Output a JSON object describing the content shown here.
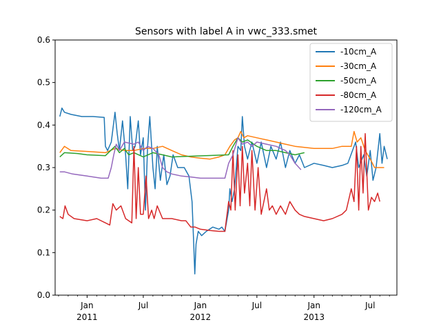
{
  "chart_data": {
    "type": "line",
    "title": "Sensors with label A in vwc_333.smet",
    "xlabel": "",
    "ylabel": "",
    "xlim": [
      "2010-09-20",
      "2013-09-25"
    ],
    "ylim": [
      0,
      0.6
    ],
    "x_ticks_major": [
      {
        "date": "2011-01-01",
        "label": "Jan",
        "year": "2011"
      },
      {
        "date": "2011-07-01",
        "label": "Jul",
        "year": ""
      },
      {
        "date": "2012-01-01",
        "label": "Jan",
        "year": "2012"
      },
      {
        "date": "2012-07-01",
        "label": "Jul",
        "year": ""
      },
      {
        "date": "2013-01-01",
        "label": "Jan",
        "year": "2013"
      },
      {
        "date": "2013-07-01",
        "label": "Jul",
        "year": ""
      }
    ],
    "y_ticks": [
      "0.0",
      "0.1",
      "0.2",
      "0.3",
      "0.4",
      "0.5",
      "0.6"
    ],
    "grid": false,
    "legend_position": "top-right",
    "series": [
      {
        "name": "-10cm_A",
        "color": "#1f77b4",
        "points": [
          [
            "2010-10-05",
            0.42
          ],
          [
            "2010-10-12",
            0.44
          ],
          [
            "2010-10-20",
            0.43
          ],
          [
            "2010-11-10",
            0.425
          ],
          [
            "2010-12-15",
            0.42
          ],
          [
            "2011-01-20",
            0.42
          ],
          [
            "2011-02-25",
            0.418
          ],
          [
            "2011-03-01",
            0.35
          ],
          [
            "2011-03-08",
            0.34
          ],
          [
            "2011-03-20",
            0.36
          ],
          [
            "2011-04-01",
            0.43
          ],
          [
            "2011-04-08",
            0.38
          ],
          [
            "2011-04-15",
            0.34
          ],
          [
            "2011-04-25",
            0.41
          ],
          [
            "2011-05-05",
            0.33
          ],
          [
            "2011-05-12",
            0.25
          ],
          [
            "2011-05-20",
            0.42
          ],
          [
            "2011-05-28",
            0.34
          ],
          [
            "2011-06-05",
            0.35
          ],
          [
            "2011-06-15",
            0.41
          ],
          [
            "2011-06-22",
            0.33
          ],
          [
            "2011-07-01",
            0.37
          ],
          [
            "2011-07-08",
            0.2
          ],
          [
            "2011-07-15",
            0.35
          ],
          [
            "2011-07-22",
            0.42
          ],
          [
            "2011-08-01",
            0.3
          ],
          [
            "2011-08-08",
            0.25
          ],
          [
            "2011-08-15",
            0.35
          ],
          [
            "2011-08-25",
            0.27
          ],
          [
            "2011-09-05",
            0.33
          ],
          [
            "2011-09-15",
            0.26
          ],
          [
            "2011-09-25",
            0.28
          ],
          [
            "2011-10-05",
            0.33
          ],
          [
            "2011-10-20",
            0.3
          ],
          [
            "2011-11-10",
            0.3
          ],
          [
            "2011-11-25",
            0.28
          ],
          [
            "2011-12-05",
            0.22
          ],
          [
            "2011-12-10",
            0.13
          ],
          [
            "2011-12-14",
            0.05
          ],
          [
            "2011-12-18",
            0.12
          ],
          [
            "2011-12-25",
            0.15
          ],
          [
            "2012-01-05",
            0.14
          ],
          [
            "2012-01-20",
            0.15
          ],
          [
            "2012-02-10",
            0.16
          ],
          [
            "2012-03-01",
            0.155
          ],
          [
            "2012-03-10",
            0.16
          ],
          [
            "2012-03-20",
            0.15
          ],
          [
            "2012-04-01",
            0.2
          ],
          [
            "2012-04-05",
            0.25
          ],
          [
            "2012-04-12",
            0.22
          ],
          [
            "2012-04-20",
            0.25
          ],
          [
            "2012-05-01",
            0.35
          ],
          [
            "2012-05-10",
            0.34
          ],
          [
            "2012-05-15",
            0.42
          ],
          [
            "2012-05-22",
            0.35
          ],
          [
            "2012-06-01",
            0.32
          ],
          [
            "2012-06-15",
            0.36
          ],
          [
            "2012-07-01",
            0.31
          ],
          [
            "2012-07-15",
            0.36
          ],
          [
            "2012-08-01",
            0.3
          ],
          [
            "2012-08-15",
            0.35
          ],
          [
            "2012-09-01",
            0.32
          ],
          [
            "2012-09-15",
            0.36
          ],
          [
            "2012-10-01",
            0.3
          ],
          [
            "2012-10-15",
            0.34
          ],
          [
            "2012-11-01",
            0.31
          ],
          [
            "2012-11-15",
            0.33
          ],
          [
            "2012-12-01",
            0.3
          ],
          [
            "2013-01-01",
            0.31
          ],
          [
            "2013-02-01",
            0.305
          ],
          [
            "2013-03-01",
            0.3
          ],
          [
            "2013-04-01",
            0.305
          ],
          [
            "2013-04-20",
            0.31
          ],
          [
            "2013-05-05",
            0.34
          ],
          [
            "2013-05-15",
            0.36
          ],
          [
            "2013-05-25",
            0.3
          ],
          [
            "2013-06-10",
            0.33
          ],
          [
            "2013-06-20",
            0.28
          ],
          [
            "2013-07-01",
            0.34
          ],
          [
            "2013-07-10",
            0.27
          ],
          [
            "2013-07-20",
            0.3
          ],
          [
            "2013-08-01",
            0.38
          ],
          [
            "2013-08-08",
            0.31
          ],
          [
            "2013-08-15",
            0.35
          ],
          [
            "2013-08-25",
            0.32
          ]
        ]
      },
      {
        "name": "-30cm_A",
        "color": "#ff7f0e",
        "points": [
          [
            "2010-10-05",
            0.335
          ],
          [
            "2010-10-20",
            0.35
          ],
          [
            "2010-11-10",
            0.34
          ],
          [
            "2011-01-01",
            0.338
          ],
          [
            "2011-03-01",
            0.335
          ],
          [
            "2011-04-01",
            0.345
          ],
          [
            "2011-05-01",
            0.34
          ],
          [
            "2011-06-01",
            0.34
          ],
          [
            "2011-07-01",
            0.345
          ],
          [
            "2011-08-01",
            0.345
          ],
          [
            "2011-09-01",
            0.35
          ],
          [
            "2011-10-01",
            0.34
          ],
          [
            "2011-11-01",
            0.33
          ],
          [
            "2011-12-01",
            0.325
          ],
          [
            "2012-01-01",
            0.322
          ],
          [
            "2012-02-01",
            0.32
          ],
          [
            "2012-03-01",
            0.325
          ],
          [
            "2012-03-20",
            0.33
          ],
          [
            "2012-04-05",
            0.35
          ],
          [
            "2012-04-20",
            0.365
          ],
          [
            "2012-05-01",
            0.37
          ],
          [
            "2012-05-10",
            0.385
          ],
          [
            "2012-05-20",
            0.37
          ],
          [
            "2012-06-01",
            0.375
          ],
          [
            "2012-07-01",
            0.37
          ],
          [
            "2012-08-01",
            0.365
          ],
          [
            "2012-09-01",
            0.36
          ],
          [
            "2012-10-01",
            0.355
          ],
          [
            "2012-11-01",
            0.35
          ],
          [
            "2013-01-01",
            0.345
          ],
          [
            "2013-03-01",
            0.345
          ],
          [
            "2013-04-01",
            0.35
          ],
          [
            "2013-05-01",
            0.35
          ],
          [
            "2013-05-10",
            0.385
          ],
          [
            "2013-05-20",
            0.36
          ],
          [
            "2013-06-01",
            0.37
          ],
          [
            "2013-06-15",
            0.34
          ],
          [
            "2013-07-01",
            0.32
          ],
          [
            "2013-07-15",
            0.3
          ],
          [
            "2013-08-01",
            0.3
          ],
          [
            "2013-08-15",
            0.3
          ]
        ]
      },
      {
        "name": "-50cm_A",
        "color": "#2ca02c",
        "points": [
          [
            "2010-10-05",
            0.325
          ],
          [
            "2010-10-20",
            0.335
          ],
          [
            "2010-12-01",
            0.333
          ],
          [
            "2011-01-01",
            0.33
          ],
          [
            "2011-03-01",
            0.328
          ],
          [
            "2011-04-01",
            0.35
          ],
          [
            "2011-04-15",
            0.335
          ],
          [
            "2011-05-01",
            0.345
          ],
          [
            "2011-05-15",
            0.33
          ],
          [
            "2011-06-01",
            0.335
          ],
          [
            "2011-07-01",
            0.325
          ],
          [
            "2011-08-01",
            0.335
          ],
          [
            "2011-09-01",
            0.33
          ],
          [
            "2011-10-01",
            0.325
          ],
          [
            "2012-04-01",
            0.33
          ],
          [
            "2012-04-15",
            0.35
          ],
          [
            "2012-05-01",
            0.37
          ],
          [
            "2012-05-15",
            0.36
          ],
          [
            "2012-06-01",
            0.365
          ],
          [
            "2012-07-01",
            0.35
          ],
          [
            "2012-08-01",
            0.34
          ],
          [
            "2012-09-01",
            0.34
          ],
          [
            "2012-10-01",
            0.335
          ],
          [
            "2012-11-01",
            0.33
          ],
          [
            "2012-12-01",
            0.335
          ]
        ]
      },
      {
        "name": "-80cm_A",
        "color": "#d62728",
        "points": [
          [
            "2010-10-05",
            0.185
          ],
          [
            "2010-10-15",
            0.18
          ],
          [
            "2010-10-22",
            0.21
          ],
          [
            "2010-11-01",
            0.19
          ],
          [
            "2010-11-20",
            0.18
          ],
          [
            "2011-01-01",
            0.175
          ],
          [
            "2011-02-01",
            0.18
          ],
          [
            "2011-03-01",
            0.17
          ],
          [
            "2011-03-15",
            0.165
          ],
          [
            "2011-03-25",
            0.215
          ],
          [
            "2011-04-05",
            0.2
          ],
          [
            "2011-04-20",
            0.21
          ],
          [
            "2011-05-05",
            0.18
          ],
          [
            "2011-05-15",
            0.175
          ],
          [
            "2011-05-25",
            0.17
          ],
          [
            "2011-06-01",
            0.35
          ],
          [
            "2011-06-08",
            0.18
          ],
          [
            "2011-06-15",
            0.3
          ],
          [
            "2011-06-22",
            0.19
          ],
          [
            "2011-07-01",
            0.19
          ],
          [
            "2011-07-10",
            0.28
          ],
          [
            "2011-07-18",
            0.18
          ],
          [
            "2011-07-28",
            0.2
          ],
          [
            "2011-08-05",
            0.18
          ],
          [
            "2011-08-15",
            0.21
          ],
          [
            "2011-09-01",
            0.18
          ],
          [
            "2011-10-01",
            0.18
          ],
          [
            "2011-11-01",
            0.175
          ],
          [
            "2011-11-15",
            0.175
          ],
          [
            "2011-12-01",
            0.16
          ],
          [
            "2011-12-15",
            0.16
          ],
          [
            "2012-01-01",
            0.155
          ],
          [
            "2012-02-01",
            0.152
          ],
          [
            "2012-03-01",
            0.15
          ],
          [
            "2012-03-20",
            0.15
          ],
          [
            "2012-04-01",
            0.22
          ],
          [
            "2012-04-08",
            0.2
          ],
          [
            "2012-04-15",
            0.34
          ],
          [
            "2012-04-22",
            0.2
          ],
          [
            "2012-05-01",
            0.33
          ],
          [
            "2012-05-08",
            0.21
          ],
          [
            "2012-05-15",
            0.35
          ],
          [
            "2012-05-22",
            0.24
          ],
          [
            "2012-06-01",
            0.31
          ],
          [
            "2012-06-08",
            0.21
          ],
          [
            "2012-06-15",
            0.34
          ],
          [
            "2012-06-25",
            0.2
          ],
          [
            "2012-07-05",
            0.3
          ],
          [
            "2012-07-15",
            0.19
          ],
          [
            "2012-08-01",
            0.25
          ],
          [
            "2012-08-10",
            0.2
          ],
          [
            "2012-08-20",
            0.21
          ],
          [
            "2012-09-01",
            0.19
          ],
          [
            "2012-09-15",
            0.21
          ],
          [
            "2012-10-01",
            0.19
          ],
          [
            "2012-10-15",
            0.22
          ],
          [
            "2012-11-01",
            0.2
          ],
          [
            "2012-11-15",
            0.19
          ],
          [
            "2012-12-01",
            0.185
          ],
          [
            "2013-01-01",
            0.18
          ],
          [
            "2013-02-01",
            0.175
          ],
          [
            "2013-03-01",
            0.18
          ],
          [
            "2013-04-01",
            0.19
          ],
          [
            "2013-04-15",
            0.2
          ],
          [
            "2013-05-01",
            0.25
          ],
          [
            "2013-05-10",
            0.22
          ],
          [
            "2013-05-18",
            0.35
          ],
          [
            "2013-05-25",
            0.2
          ],
          [
            "2013-06-01",
            0.35
          ],
          [
            "2013-06-08",
            0.24
          ],
          [
            "2013-06-15",
            0.38
          ],
          [
            "2013-06-25",
            0.2
          ],
          [
            "2013-07-05",
            0.23
          ],
          [
            "2013-07-15",
            0.22
          ],
          [
            "2013-07-25",
            0.24
          ],
          [
            "2013-08-01",
            0.22
          ]
        ]
      },
      {
        "name": "-120cm_A",
        "color": "#9467bd",
        "points": [
          [
            "2010-10-05",
            0.29
          ],
          [
            "2010-10-20",
            0.29
          ],
          [
            "2010-11-15",
            0.285
          ],
          [
            "2011-01-01",
            0.28
          ],
          [
            "2011-02-15",
            0.275
          ],
          [
            "2011-03-10",
            0.275
          ],
          [
            "2011-03-20",
            0.3
          ],
          [
            "2011-03-28",
            0.33
          ],
          [
            "2011-04-05",
            0.355
          ],
          [
            "2011-04-15",
            0.34
          ],
          [
            "2011-05-01",
            0.36
          ],
          [
            "2011-06-01",
            0.355
          ],
          [
            "2011-06-15",
            0.36
          ],
          [
            "2011-07-01",
            0.34
          ],
          [
            "2011-07-15",
            0.35
          ],
          [
            "2011-08-01",
            0.345
          ],
          [
            "2011-08-20",
            0.33
          ],
          [
            "2011-09-01",
            0.3
          ],
          [
            "2011-09-15",
            0.29
          ],
          [
            "2011-10-01",
            0.285
          ],
          [
            "2011-11-01",
            0.28
          ],
          [
            "2011-12-01",
            0.278
          ],
          [
            "2012-01-01",
            0.275
          ],
          [
            "2012-02-01",
            0.275
          ],
          [
            "2012-03-01",
            0.275
          ],
          [
            "2012-03-20",
            0.275
          ],
          [
            "2012-04-01",
            0.31
          ],
          [
            "2012-04-15",
            0.33
          ],
          [
            "2012-05-01",
            0.37
          ],
          [
            "2012-05-15",
            0.355
          ],
          [
            "2012-06-01",
            0.36
          ],
          [
            "2012-06-15",
            0.35
          ],
          [
            "2012-07-01",
            0.36
          ],
          [
            "2012-08-01",
            0.355
          ],
          [
            "2012-09-01",
            0.35
          ],
          [
            "2012-10-01",
            0.34
          ],
          [
            "2012-10-15",
            0.33
          ],
          [
            "2012-11-01",
            0.31
          ],
          [
            "2012-11-20",
            0.295
          ]
        ]
      }
    ]
  }
}
